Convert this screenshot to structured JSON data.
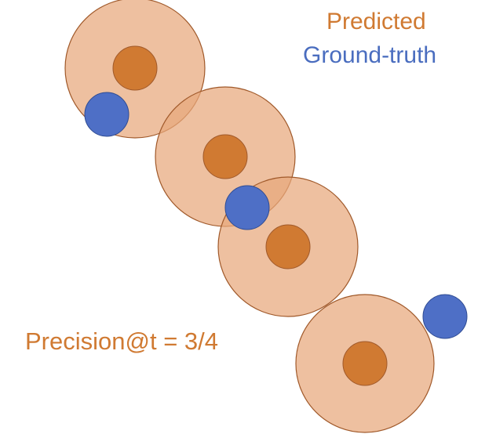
{
  "legend": {
    "predicted_label": "Predicted",
    "ground_truth_label": "Ground-truth"
  },
  "metric": {
    "text": "Precision@t = 3/4"
  },
  "colors": {
    "predicted_text": "#d07a32",
    "ground_truth_text": "#4a6dbf",
    "tolerance_fill": "#e8a87c",
    "tolerance_stroke": "#a0592a",
    "predicted_center_fill": "#d07a32",
    "predicted_center_stroke": "#a0592a",
    "ground_truth_fill": "#4e6fc6",
    "ground_truth_stroke": "#2f4c93"
  }
}
